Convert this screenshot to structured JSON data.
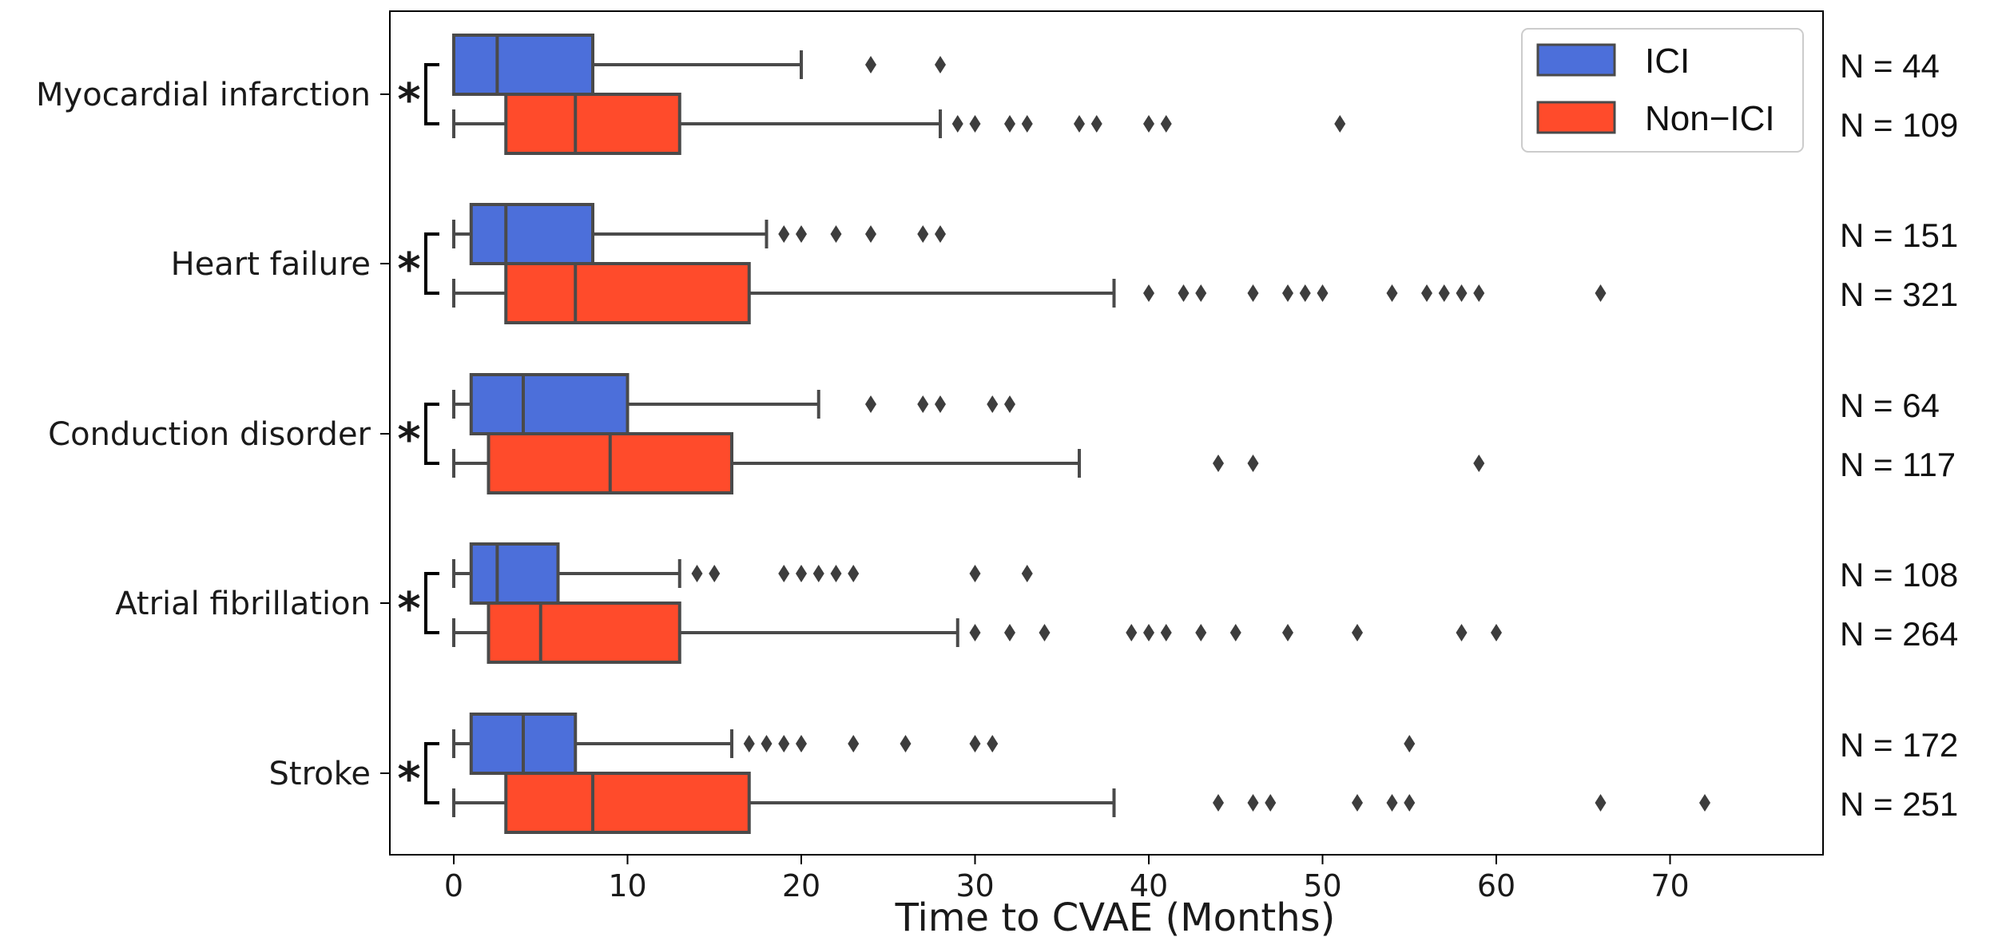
{
  "chart_data": {
    "type": "boxplot",
    "orientation": "horizontal",
    "xlabel": "Time to CVAE (Months)",
    "xlim": [
      -4,
      79
    ],
    "xticks": [
      0,
      10,
      20,
      30,
      40,
      50,
      60,
      70
    ],
    "grid": false,
    "legend": {
      "placement": "top-right",
      "entries": [
        {
          "name": "ICI",
          "color": "#4C6FDA"
        },
        {
          "name": "Non−ICI",
          "color": "#FF4B2B"
        }
      ]
    },
    "significance_marker": "*",
    "groups": [
      {
        "label": "Myocardial infarction",
        "boxes": [
          {
            "series": "ICI",
            "whislo": 0,
            "q1": 0,
            "med": 2.5,
            "q3": 8,
            "whishi": 20,
            "fliers": [
              24,
              28
            ],
            "n_label": "N = 44"
          },
          {
            "series": "Non−ICI",
            "whislo": 0,
            "q1": 3,
            "med": 7,
            "q3": 13,
            "whishi": 28,
            "fliers": [
              29,
              30,
              32,
              33,
              36,
              37,
              40,
              41,
              51
            ],
            "n_label": "N = 109"
          }
        ]
      },
      {
        "label": "Heart failure",
        "boxes": [
          {
            "series": "ICI",
            "whislo": 0,
            "q1": 1,
            "med": 3,
            "q3": 8,
            "whishi": 18,
            "fliers": [
              19,
              20,
              22,
              24,
              27,
              28
            ],
            "n_label": "N = 151"
          },
          {
            "series": "Non−ICI",
            "whislo": 0,
            "q1": 3,
            "med": 7,
            "q3": 17,
            "whishi": 38,
            "fliers": [
              40,
              42,
              43,
              46,
              48,
              49,
              50,
              54,
              56,
              57,
              58,
              59,
              66
            ],
            "n_label": "N = 321"
          }
        ]
      },
      {
        "label": "Conduction disorder",
        "boxes": [
          {
            "series": "ICI",
            "whislo": 0,
            "q1": 1,
            "med": 4,
            "q3": 10,
            "whishi": 21,
            "fliers": [
              24,
              27,
              28,
              31,
              32
            ],
            "n_label": "N = 64"
          },
          {
            "series": "Non−ICI",
            "whislo": 0,
            "q1": 2,
            "med": 9,
            "q3": 16,
            "whishi": 36,
            "fliers": [
              44,
              46,
              59
            ],
            "n_label": "N = 117"
          }
        ]
      },
      {
        "label": "Atrial fibrillation",
        "boxes": [
          {
            "series": "ICI",
            "whislo": 0,
            "q1": 1,
            "med": 2.5,
            "q3": 6,
            "whishi": 13,
            "fliers": [
              14,
              15,
              19,
              20,
              21,
              22,
              23,
              30,
              33
            ],
            "n_label": "N = 108"
          },
          {
            "series": "Non−ICI",
            "whislo": 0,
            "q1": 2,
            "med": 5,
            "q3": 13,
            "whishi": 29,
            "fliers": [
              30,
              32,
              34,
              39,
              40,
              41,
              43,
              45,
              48,
              52,
              58,
              60
            ],
            "n_label": "N = 264"
          }
        ]
      },
      {
        "label": "Stroke",
        "boxes": [
          {
            "series": "ICI",
            "whislo": 0,
            "q1": 1,
            "med": 4,
            "q3": 7,
            "whishi": 16,
            "fliers": [
              17,
              18,
              19,
              20,
              23,
              26,
              30,
              31,
              55
            ],
            "n_label": "N = 172"
          },
          {
            "series": "Non−ICI",
            "whislo": 0,
            "q1": 3,
            "med": 8,
            "q3": 17,
            "whishi": 38,
            "fliers": [
              44,
              46,
              47,
              52,
              54,
              55,
              66,
              72
            ],
            "n_label": "N = 251"
          }
        ]
      }
    ]
  }
}
